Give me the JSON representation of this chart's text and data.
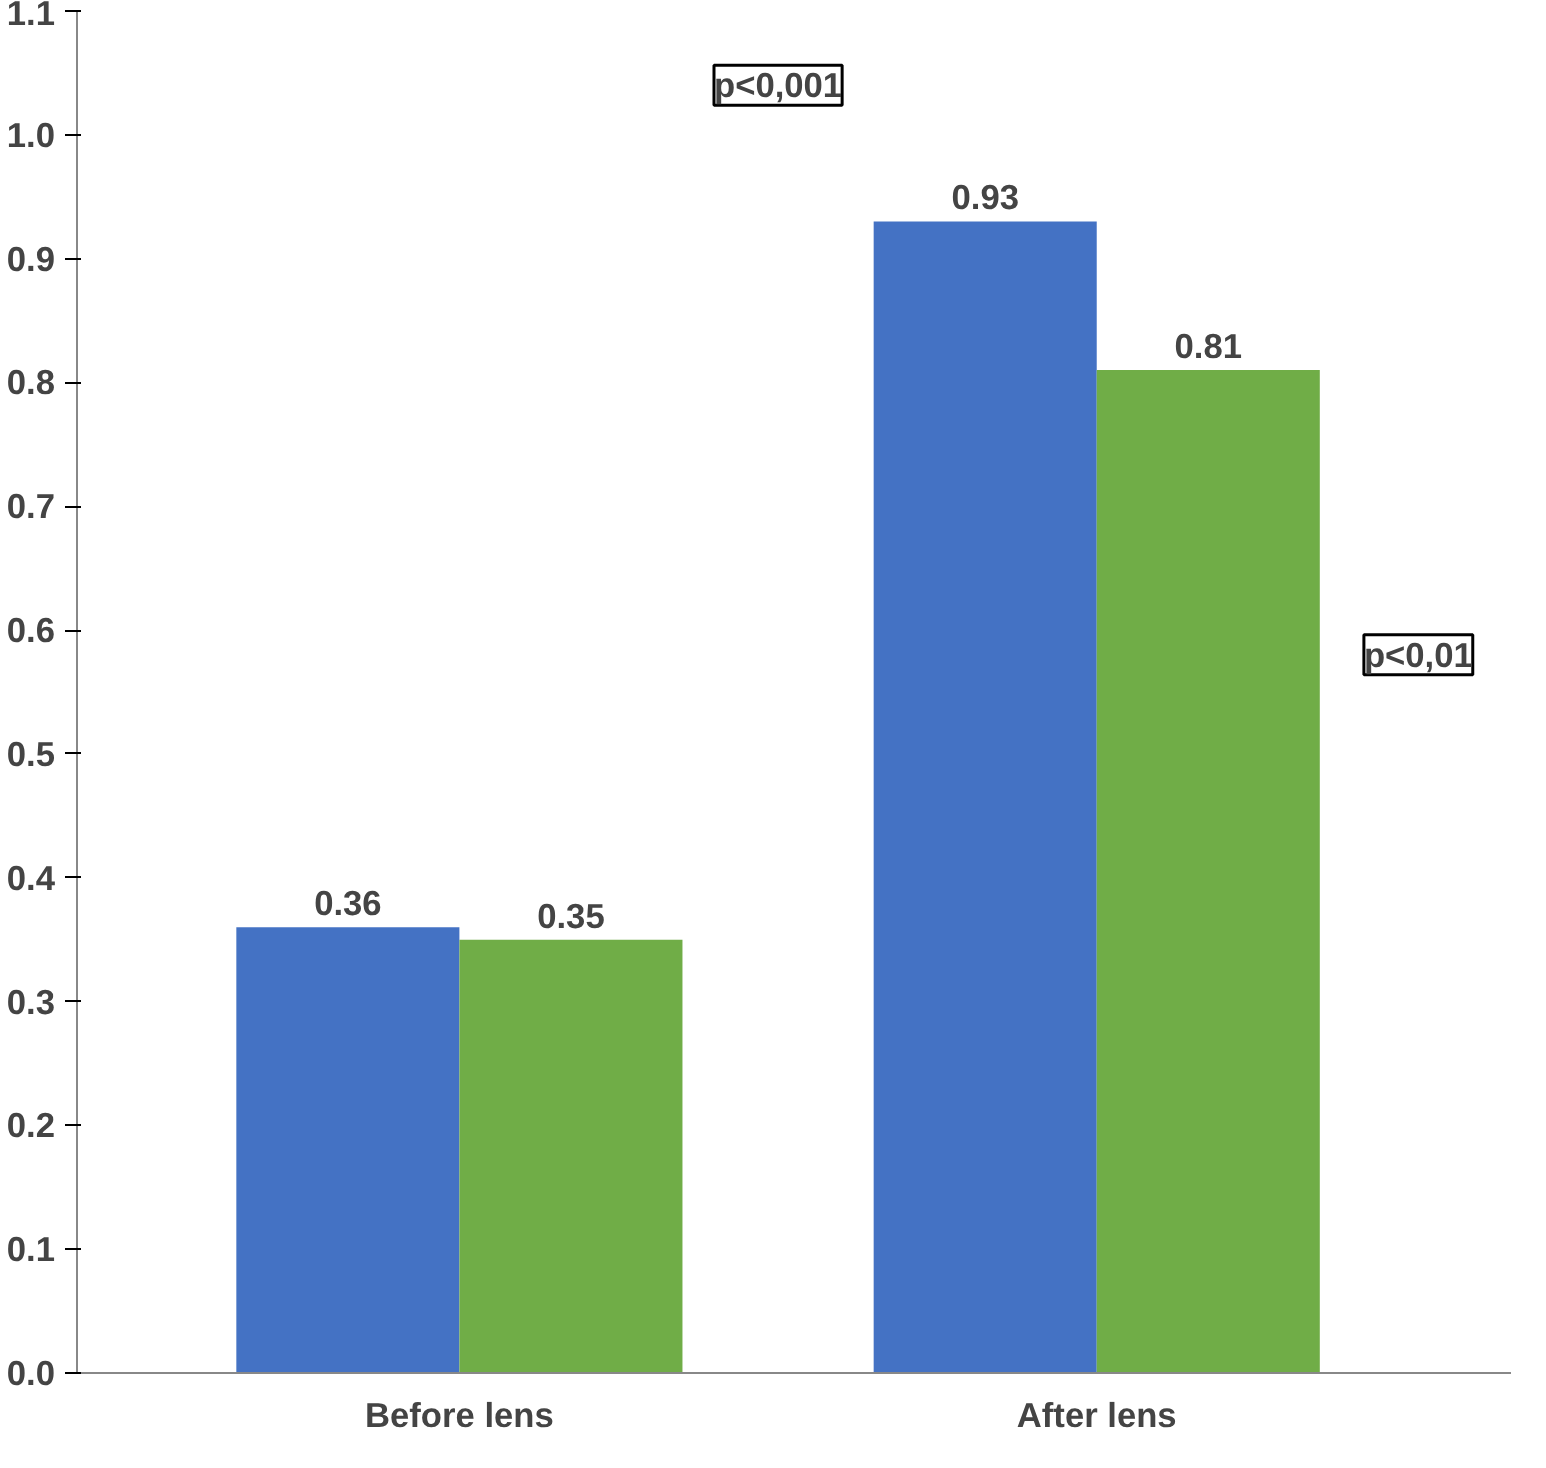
{
  "chart_data": {
    "type": "bar",
    "categories": [
      "Before lens",
      "After lens"
    ],
    "series": [
      {
        "color": "#4472c4",
        "values": [
          0.36,
          0.93
        ]
      },
      {
        "color": "#70ad47",
        "values": [
          0.35,
          0.81
        ]
      }
    ],
    "ylim": [
      0,
      1.1
    ],
    "yticks": [
      "0.0",
      0.1,
      0.2,
      0.3,
      0.4,
      0.5,
      0.6,
      0.7,
      0.8,
      0.9,
      "1.0",
      1.1
    ],
    "data_labels": true,
    "grid": false,
    "annotations": [
      "p<0,001",
      "p<0,01"
    ]
  }
}
